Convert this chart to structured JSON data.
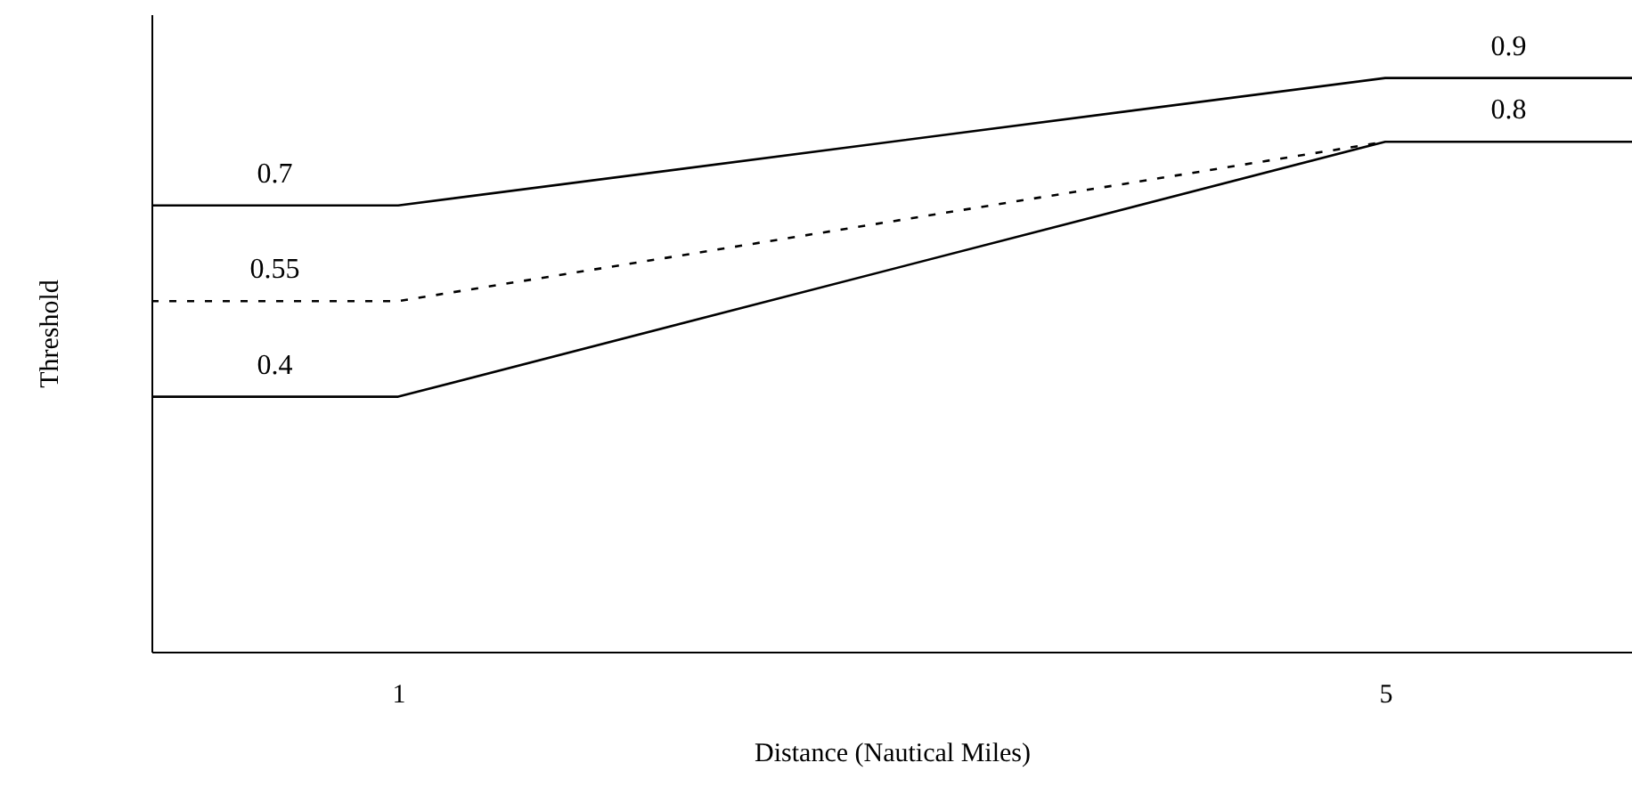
{
  "chart_data": {
    "type": "line",
    "xlabel": "Distance (Nautical Miles)",
    "ylabel": "Threshold",
    "xlim": [
      0,
      6
    ],
    "xticks": [
      1,
      5
    ],
    "ylim": [
      0,
      1
    ],
    "tick_labels": "x",
    "grid": false,
    "marker": "none",
    "series": [
      {
        "color": "#000000",
        "x": [
          0,
          0.5,
          1,
          5,
          5.5,
          6
        ],
        "values": [
          0.7,
          0.7,
          0.7,
          0.9,
          0.9,
          0.9
        ],
        "value_labels": [
          null,
          "0.7",
          null,
          null,
          "0.9",
          null
        ],
        "line_style": "solid"
      },
      {
        "color": "#000000",
        "x": [
          0,
          0.5,
          1,
          5
        ],
        "values": [
          0.55,
          0.55,
          0.55,
          0.8
        ],
        "value_labels": [
          null,
          "0.55",
          null,
          null
        ],
        "line_style": "dashed"
      },
      {
        "color": "#000000",
        "x": [
          0,
          0.5,
          1,
          5,
          5.5,
          6
        ],
        "values": [
          0.4,
          0.4,
          0.4,
          0.8,
          0.8,
          0.8
        ],
        "value_labels": [
          null,
          "0.4",
          null,
          null,
          "0.8",
          null
        ],
        "line_style": "solid"
      }
    ]
  }
}
